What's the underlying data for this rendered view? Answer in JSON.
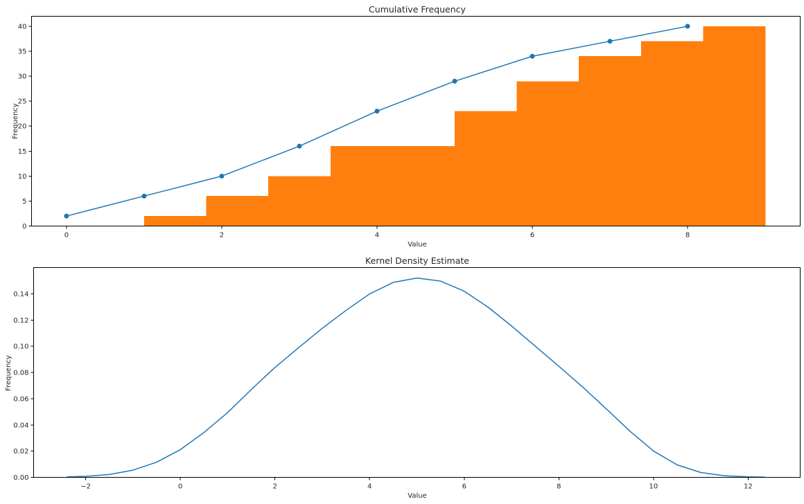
{
  "chart_data": [
    {
      "type": "bar",
      "title": "Cumulative Frequency",
      "xlabel": "Value",
      "ylabel": "Frequency",
      "xlim": [
        -0.45,
        9.45
      ],
      "ylim": [
        0,
        42
      ],
      "xticks": [
        0,
        2,
        4,
        6,
        8
      ],
      "yticks": [
        0,
        5,
        10,
        15,
        20,
        25,
        30,
        35,
        40
      ],
      "grid": false,
      "colors": {
        "line": "#1f77b4",
        "bars": "#ff7f0e"
      },
      "series": [
        {
          "type": "line",
          "marker": "circle",
          "x": [
            0,
            1,
            2,
            3,
            4,
            5,
            6,
            7,
            8
          ],
          "y": [
            2,
            6,
            10,
            16,
            23,
            29,
            34,
            37,
            40
          ]
        },
        {
          "type": "step-bar",
          "edges": [
            1.0,
            1.8,
            2.6,
            3.4,
            4.2,
            5.0,
            5.8,
            6.6,
            7.4,
            8.2,
            9.0
          ],
          "values": [
            2,
            6,
            10,
            16,
            16,
            23,
            29,
            34,
            37,
            40
          ]
        }
      ]
    },
    {
      "type": "line",
      "title": "Kernel Density Estimate",
      "xlabel": "Value",
      "ylabel": "Frequency",
      "xlim": [
        -3.1,
        13.1
      ],
      "ylim": [
        0,
        0.16
      ],
      "xticks": [
        -2,
        0,
        2,
        4,
        6,
        8,
        10,
        12
      ],
      "yticks": [
        0.0,
        0.02,
        0.04,
        0.06,
        0.08,
        0.1,
        0.12,
        0.14
      ],
      "grid": false,
      "colors": {
        "line": "#1f77b4"
      },
      "series": [
        {
          "type": "line",
          "x": [
            -2.4,
            -2.0,
            -1.5,
            -1.0,
            -0.5,
            0.0,
            0.5,
            1.0,
            1.5,
            2.0,
            2.5,
            3.0,
            3.5,
            4.0,
            4.5,
            5.0,
            5.5,
            6.0,
            6.5,
            7.0,
            7.5,
            8.0,
            8.5,
            9.0,
            9.5,
            10.0,
            10.5,
            11.0,
            11.5,
            12.0,
            12.35
          ],
          "y": [
            0.0003,
            0.0008,
            0.0022,
            0.0055,
            0.0116,
            0.0211,
            0.0342,
            0.0494,
            0.067,
            0.0838,
            0.0989,
            0.1137,
            0.1273,
            0.1399,
            0.1487,
            0.152,
            0.1497,
            0.142,
            0.1299,
            0.1155,
            0.1001,
            0.0847,
            0.069,
            0.0523,
            0.0353,
            0.0201,
            0.0095,
            0.0037,
            0.0012,
            0.0004,
            0.0002
          ]
        }
      ]
    }
  ]
}
